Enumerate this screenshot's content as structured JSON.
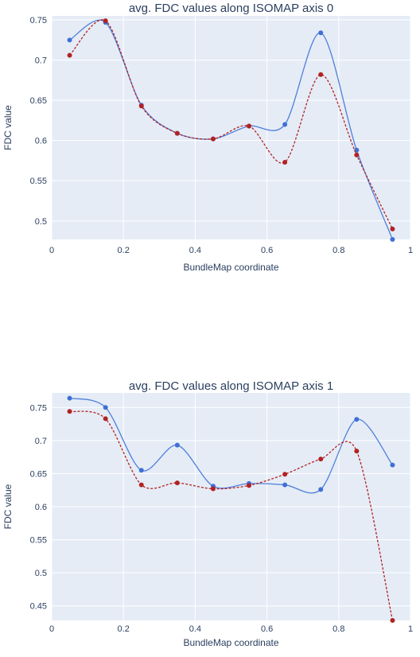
{
  "chart_data": [
    {
      "type": "line",
      "title": "avg. FDC values along ISOMAP axis 0",
      "xlabel": "BundleMap coordinate",
      "ylabel": "FDC value",
      "xlim": [
        0,
        1
      ],
      "ylim": [
        0.477,
        0.755
      ],
      "xticks": [
        0,
        0.2,
        0.4,
        0.6,
        0.8,
        1
      ],
      "xtick_labels": [
        "0",
        "0.2",
        "0.4",
        "0.6",
        "0.8",
        "1"
      ],
      "yticks": [
        0.5,
        0.55,
        0.6,
        0.65,
        0.7,
        0.75
      ],
      "ytick_labels": [
        "0.5",
        "0.55",
        "0.6",
        "0.65",
        "0.7",
        "0.75"
      ],
      "grid": true,
      "legend": "none",
      "x": [
        0.05,
        0.15,
        0.25,
        0.35,
        0.45,
        0.55,
        0.65,
        0.75,
        0.85,
        0.95
      ],
      "series": [
        {
          "color": "#4f7fdb",
          "line": "solid",
          "marker": "#3f6fd6",
          "values": [
            0.725,
            0.747,
            0.644,
            0.609,
            0.602,
            0.618,
            0.62,
            0.734,
            0.588,
            0.477
          ]
        },
        {
          "color": "#b22222",
          "line": "dashed",
          "marker": "#b22222",
          "values": [
            0.706,
            0.749,
            0.643,
            0.609,
            0.602,
            0.618,
            0.573,
            0.682,
            0.582,
            0.49
          ]
        }
      ]
    },
    {
      "type": "line",
      "title": "avg. FDC values along ISOMAP axis 1",
      "xlabel": "BundleMap coordinate",
      "ylabel": "FDC value",
      "xlim": [
        0,
        1
      ],
      "ylim": [
        0.428,
        0.772
      ],
      "xticks": [
        0,
        0.2,
        0.4,
        0.6,
        0.8,
        1
      ],
      "xtick_labels": [
        "0",
        "0.2",
        "0.4",
        "0.6",
        "0.8",
        "1"
      ],
      "yticks": [
        0.45,
        0.5,
        0.55,
        0.6,
        0.65,
        0.7,
        0.75
      ],
      "ytick_labels": [
        "0.45",
        "0.5",
        "0.55",
        "0.6",
        "0.65",
        "0.7",
        "0.75"
      ],
      "grid": true,
      "legend": "none",
      "x": [
        0.05,
        0.15,
        0.25,
        0.35,
        0.45,
        0.55,
        0.65,
        0.75,
        0.85,
        0.95
      ],
      "series": [
        {
          "color": "#4f7fdb",
          "line": "solid",
          "marker": "#3f6fd6",
          "values": [
            0.764,
            0.75,
            0.655,
            0.693,
            0.631,
            0.635,
            0.633,
            0.626,
            0.732,
            0.663
          ]
        },
        {
          "color": "#b22222",
          "line": "dashed",
          "marker": "#b22222",
          "values": [
            0.744,
            0.733,
            0.633,
            0.636,
            0.627,
            0.632,
            0.649,
            0.672,
            0.684,
            0.428
          ]
        }
      ]
    }
  ]
}
